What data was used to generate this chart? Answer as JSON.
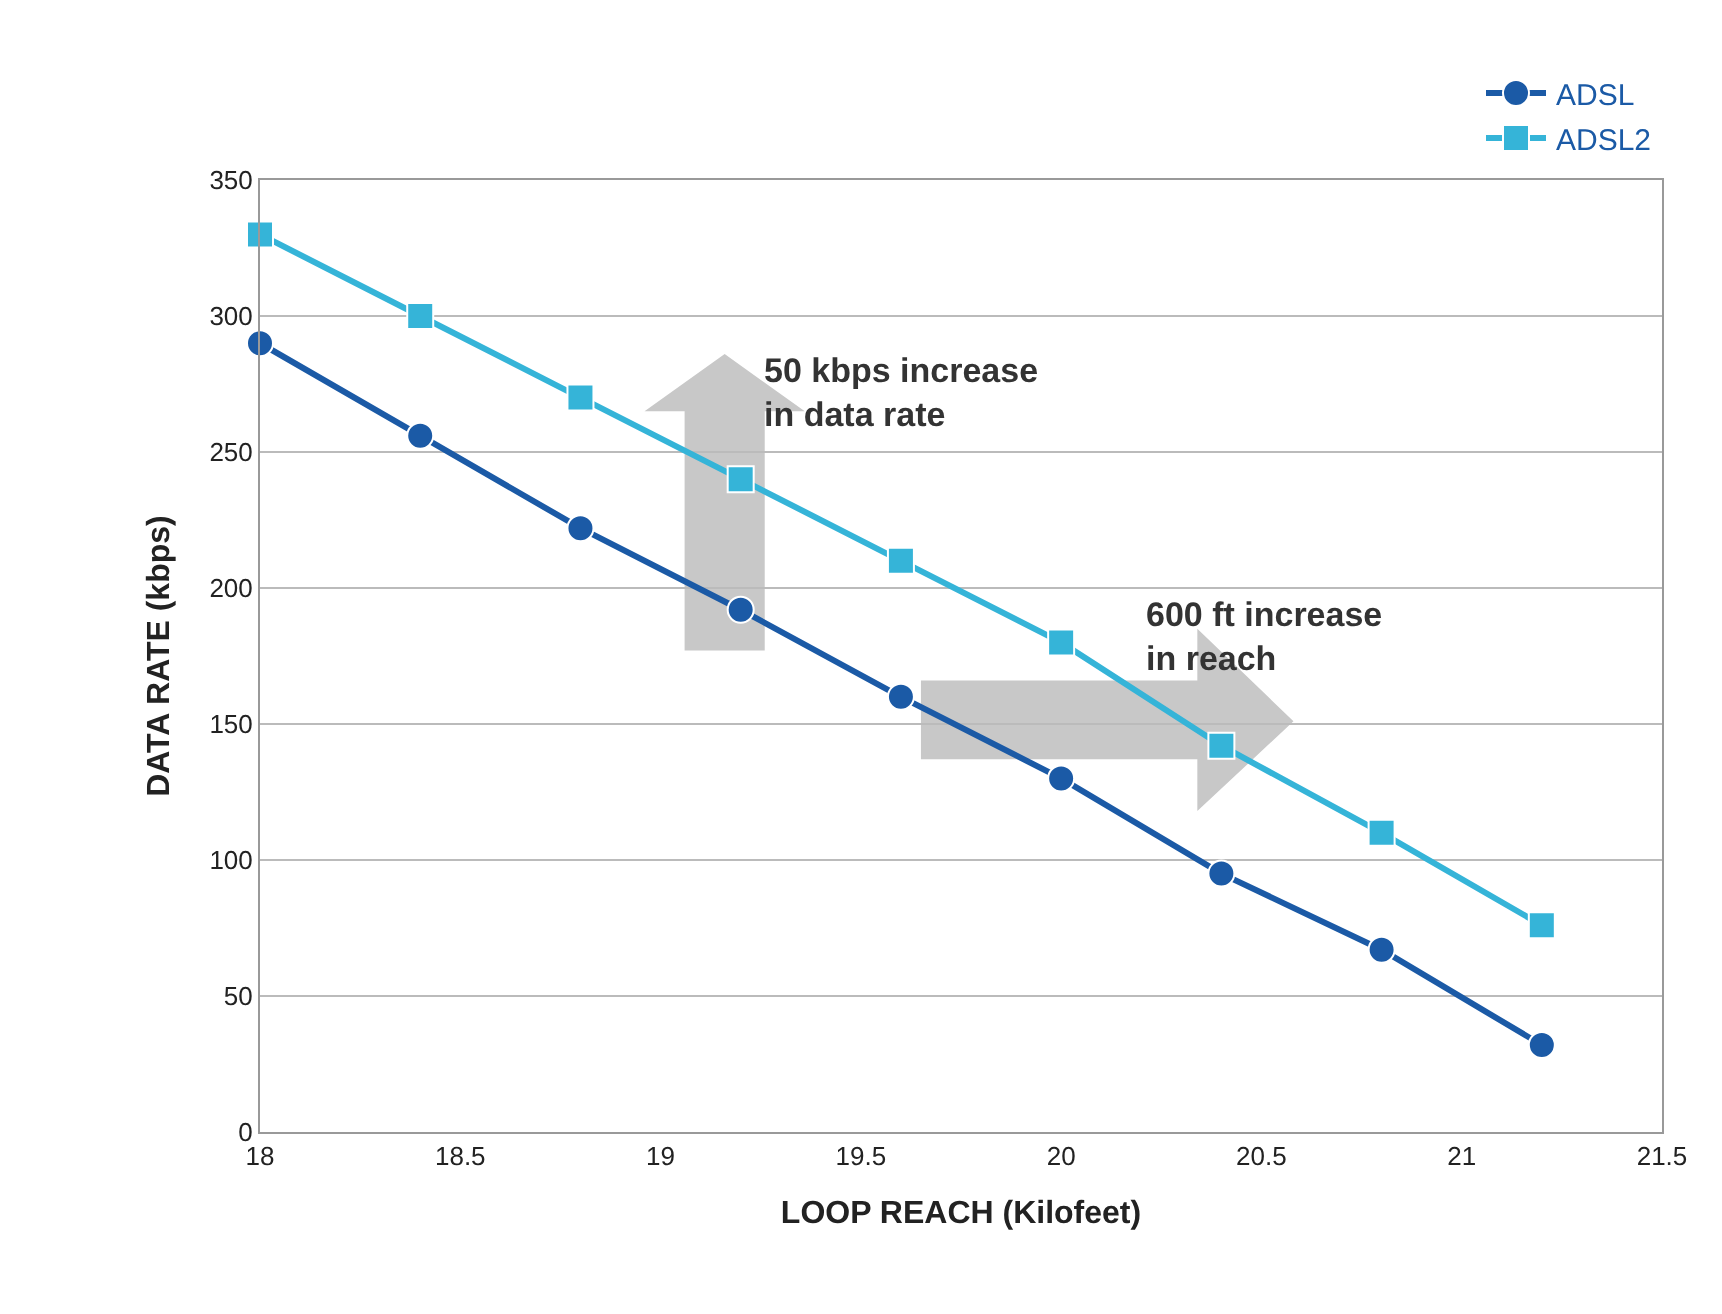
{
  "chart_data": {
    "type": "line",
    "xlabel": "LOOP REACH (Kilofeet)",
    "ylabel": "DATA RATE (kbps)",
    "x": [
      18,
      18.4,
      18.8,
      19.2,
      19.6,
      20,
      20.4,
      20.8,
      21.2
    ],
    "series": [
      {
        "name": "ADSL",
        "color": "#1b5aa6",
        "values": [
          290,
          256,
          222,
          192,
          160,
          130,
          95,
          67,
          32
        ]
      },
      {
        "name": "ADSL2",
        "color": "#35b4d8",
        "marker": "square",
        "values": [
          330,
          300,
          270,
          240,
          210,
          180,
          142,
          110,
          76
        ]
      }
    ],
    "xlim": [
      18,
      21.5
    ],
    "xticks": [
      18,
      18.5,
      19,
      19.5,
      20,
      20.5,
      21,
      21.5
    ],
    "ylim": [
      0,
      350
    ],
    "yticks": [
      0,
      50,
      100,
      150,
      200,
      250,
      300,
      350
    ],
    "grid": "y",
    "legend": "top right",
    "marker": "circle",
    "line_style": "solid",
    "annotations": [
      "50 kbps increase\nin data rate",
      "600 ft increase\nin reach"
    ]
  }
}
